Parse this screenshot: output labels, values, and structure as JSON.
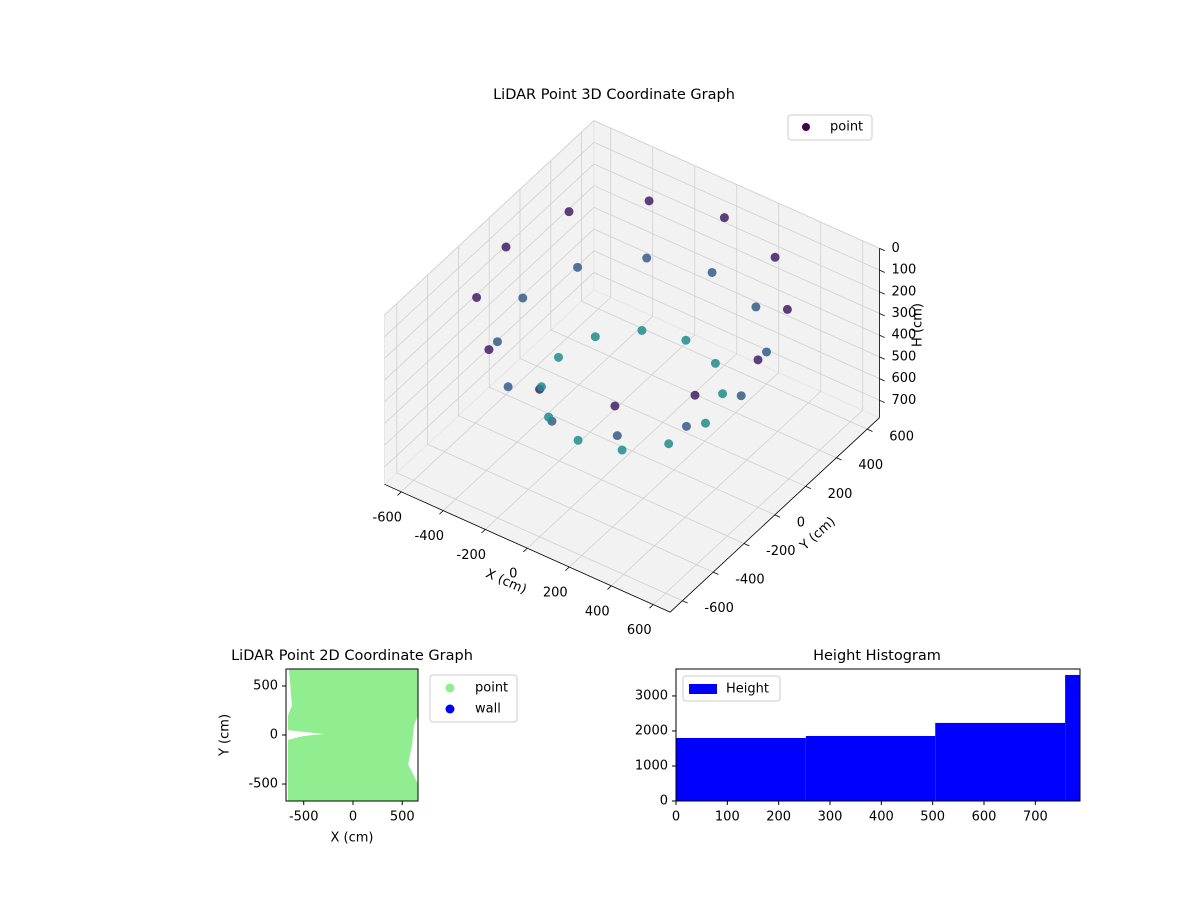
{
  "chart_data": [
    {
      "type": "scatter3d",
      "title": "LiDAR Point 3D Coordinate Graph",
      "xlabel": "X (cm)",
      "ylabel": "Y (cm)",
      "zlabel": "H (cm)",
      "colormap": "viridis",
      "z_inverted": true,
      "series": [
        {
          "name": "point",
          "color": "#440154",
          "x": [
            600,
            520,
            300,
            0,
            -300,
            -520,
            -600,
            -520,
            -300,
            0,
            300,
            520,
            520,
            450,
            260,
            0,
            -260,
            -450,
            -520,
            -450,
            -260,
            0,
            260,
            450,
            350,
            303,
            175,
            0,
            -175,
            -303,
            -350,
            -303,
            -175,
            0,
            175,
            303
          ],
          "y": [
            0,
            300,
            520,
            600,
            520,
            300,
            0,
            -300,
            -520,
            -600,
            -520,
            -300,
            0,
            260,
            450,
            520,
            450,
            260,
            0,
            -260,
            -450,
            -520,
            -450,
            -260,
            0,
            175,
            303,
            350,
            303,
            175,
            0,
            -175,
            -303,
            -350,
            -303,
            -175
          ],
          "z": [
            100,
            100,
            100,
            100,
            100,
            100,
            100,
            100,
            100,
            100,
            100,
            100,
            300,
            300,
            300,
            300,
            300,
            300,
            300,
            300,
            300,
            300,
            300,
            300,
            500,
            500,
            500,
            500,
            500,
            500,
            500,
            500,
            500,
            500,
            500,
            500
          ]
        }
      ],
      "xlim": [
        -680,
        680
      ],
      "ylim": [
        -680,
        680
      ],
      "zlim": [
        0,
        780
      ],
      "xticks": [
        -600,
        -400,
        -200,
        0,
        200,
        400,
        600
      ],
      "yticks": [
        -600,
        -400,
        -200,
        0,
        200,
        400,
        600
      ],
      "zticks": [
        0,
        100,
        200,
        300,
        400,
        500,
        600,
        700
      ],
      "grid": true,
      "legend": "upper right"
    },
    {
      "type": "scatter",
      "title": "LiDAR Point 2D Coordinate Graph",
      "xlabel": "X (cm)",
      "ylabel": "Y (cm)",
      "series": [
        {
          "name": "point",
          "color": "#90ee90",
          "x": [
            -650,
            -600,
            660,
            660,
            620,
            600,
            560,
            660,
            660,
            -660,
            -660,
            -500,
            -300,
            -660,
            -660,
            -620
          ],
          "y": [
            673,
            673,
            673,
            200,
            100,
            -100,
            -300,
            -500,
            -673,
            -673,
            -50,
            -10,
            10,
            50,
            200,
            300
          ]
        },
        {
          "name": "wall",
          "color": "#0000ff",
          "x": [],
          "y": []
        }
      ],
      "xlim": [
        -680,
        660
      ],
      "ylim": [
        -673,
        673
      ],
      "xticks": [
        -500,
        0,
        500
      ],
      "yticks": [
        -500,
        0,
        500
      ],
      "legend": "outside right"
    },
    {
      "type": "histogram",
      "title": "Height Histogram",
      "series": [
        {
          "name": "Height",
          "color": "#0000ff",
          "values": [
            1800,
            1857,
            2230,
            3600
          ]
        }
      ],
      "bins": [
        0,
        253,
        505,
        758,
        787
      ],
      "xlim": [
        0,
        787
      ],
      "ylim": [
        0,
        3770
      ],
      "xticks": [
        0,
        100,
        200,
        300,
        400,
        500,
        600,
        700
      ],
      "yticks": [
        0,
        1000,
        2000,
        3000
      ],
      "legend": "upper left"
    }
  ]
}
